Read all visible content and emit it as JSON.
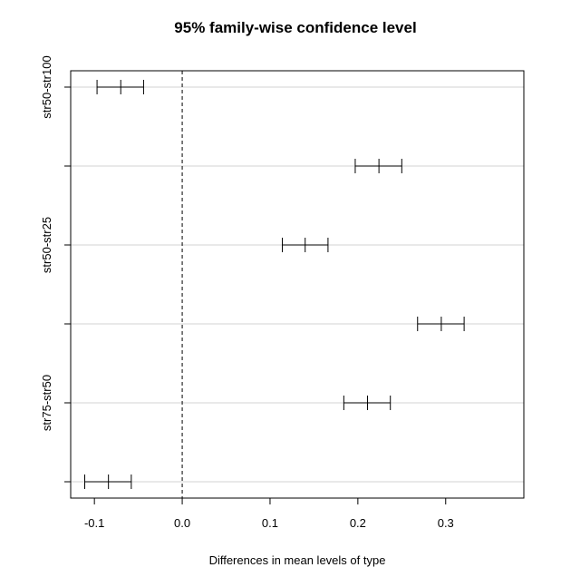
{
  "chart_data": {
    "type": "scatter",
    "title": "95% family-wise confidence level",
    "xlabel": "Differences in mean levels of type",
    "ylabel": "",
    "xlim": [
      -0.127,
      0.389
    ],
    "x_ticks": [
      -0.1,
      0.0,
      0.1,
      0.2,
      0.3
    ],
    "x_tick_labels": [
      "-0.1",
      "0.0",
      "0.1",
      "0.2",
      "0.3"
    ],
    "reference_line": 0.0,
    "grid": "horizontal",
    "y_tick_labels": [
      "str50-str100",
      "",
      "str50-str25",
      "",
      "str75-str50",
      ""
    ],
    "intervals": [
      {
        "label": "",
        "lwr": -0.097,
        "estimate": -0.07,
        "upr": -0.044
      },
      {
        "label": "str50-str100",
        "lwr": 0.197,
        "estimate": 0.224,
        "upr": 0.25
      },
      {
        "label": "",
        "lwr": 0.114,
        "estimate": 0.14,
        "upr": 0.166
      },
      {
        "label": "str50-str25",
        "lwr": 0.268,
        "estimate": 0.295,
        "upr": 0.321
      },
      {
        "label": "",
        "lwr": 0.184,
        "estimate": 0.211,
        "upr": 0.237
      },
      {
        "label": "str75-str50",
        "lwr": -0.111,
        "estimate": -0.084,
        "upr": -0.058
      }
    ]
  },
  "colors": {
    "line": "#000000",
    "grid": "#d3d3d3",
    "background": "#ffffff"
  }
}
